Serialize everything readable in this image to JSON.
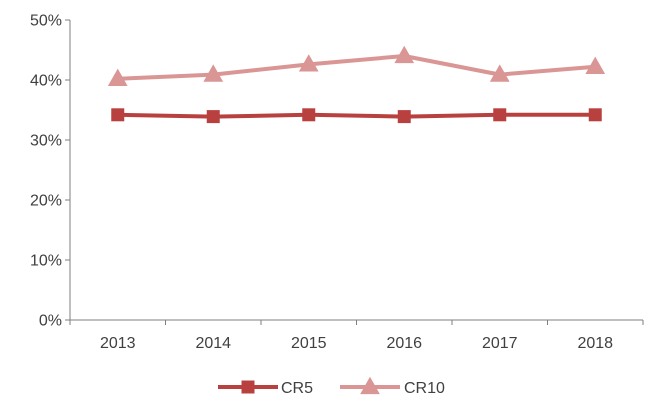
{
  "chart_data": {
    "type": "line",
    "categories": [
      "2013",
      "2014",
      "2015",
      "2016",
      "2017",
      "2018"
    ],
    "series": [
      {
        "name": "CR5",
        "values": [
          34.2,
          33.9,
          34.2,
          33.9,
          34.2,
          34.2
        ],
        "color": "#b8413f",
        "marker": "square"
      },
      {
        "name": "CR10",
        "values": [
          40.2,
          40.9,
          42.6,
          44.0,
          40.9,
          42.2
        ],
        "color": "#d99694",
        "marker": "triangle"
      }
    ],
    "y_ticks": [
      "0%",
      "10%",
      "20%",
      "30%",
      "40%",
      "50%"
    ],
    "ylim": [
      0,
      50
    ],
    "y_unit": "%",
    "grid": false,
    "legend_position": "bottom"
  }
}
